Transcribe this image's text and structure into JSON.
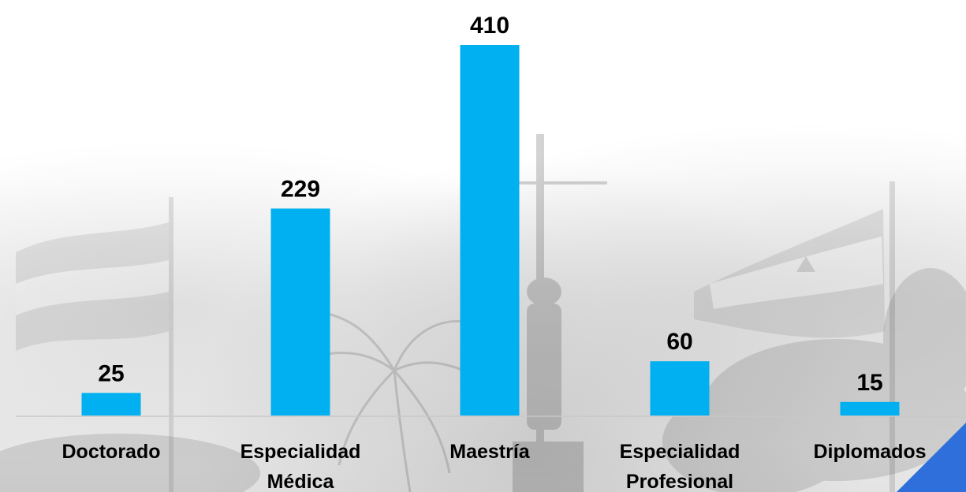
{
  "chart_data": {
    "type": "bar",
    "categories": [
      "Doctorado",
      "Especialidad Médica",
      "Maestría",
      "Especialidad Profesional",
      "Diplomados"
    ],
    "category_lines": [
      [
        "Doctorado"
      ],
      [
        "Especialidad",
        "Médica"
      ],
      [
        "Maestría"
      ],
      [
        "Especialidad",
        "Profesional"
      ],
      [
        "Diplomados"
      ]
    ],
    "values": [
      25,
      229,
      410,
      60,
      15
    ],
    "value_labels": [
      "25",
      "229",
      "410",
      "60",
      "15"
    ],
    "title": "",
    "xlabel": "",
    "ylabel": "",
    "ylim": [
      0,
      410
    ],
    "grid": false,
    "legend": "none",
    "bar_color": "#00b0f0"
  },
  "background": {
    "description_icons": [
      "flag-icon",
      "flag-icon",
      "palm-tree-icon",
      "statue-icon"
    ],
    "accent_color": "#2f6fdc"
  }
}
